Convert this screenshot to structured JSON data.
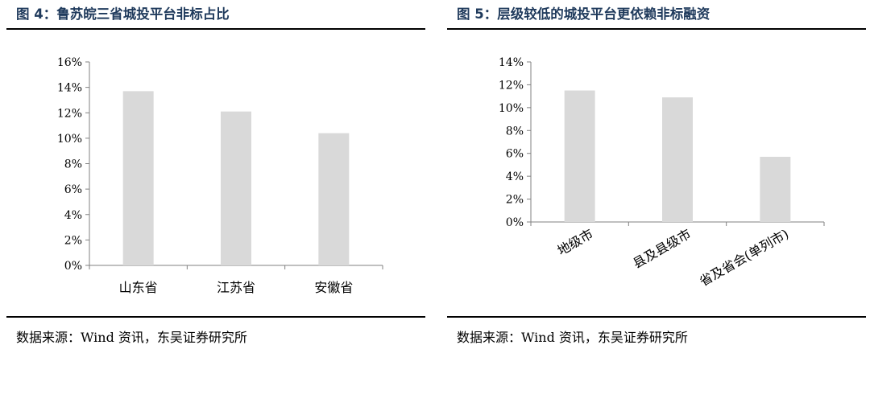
{
  "charts": [
    {
      "figure_title": "图 4：鲁苏皖三省城投平台非标占比",
      "source": "数据来源：Wind 资讯，东吴证券研究所"
    },
    {
      "figure_title": "图 5：层级较低的城投平台更依赖非标融资",
      "source": "数据来源：Wind 资讯，东吴证券研究所"
    }
  ],
  "chart_data": [
    {
      "type": "bar",
      "title": "图 4：鲁苏皖三省城投平台非标占比",
      "categories": [
        "山东省",
        "江苏省",
        "安徽省"
      ],
      "values": [
        13.7,
        12.1,
        10.4
      ],
      "unit": "%",
      "ylim": [
        0,
        16
      ],
      "yticks": [
        0,
        2,
        4,
        6,
        8,
        10,
        12,
        14,
        16
      ],
      "ytick_labels": [
        "0%",
        "2%",
        "4%",
        "6%",
        "8%",
        "10%",
        "12%",
        "14%",
        "16%"
      ],
      "bar_color": "#d9d9d9",
      "grid": false,
      "legend": "none"
    },
    {
      "type": "bar",
      "title": "图 5：层级较低的城投平台更依赖非标融资",
      "categories": [
        "地级市",
        "县及县级市",
        "省及省会(单列市)"
      ],
      "values": [
        11.5,
        10.9,
        5.7
      ],
      "unit": "%",
      "ylim": [
        0,
        14
      ],
      "yticks": [
        0,
        2,
        4,
        6,
        8,
        10,
        12,
        14
      ],
      "ytick_labels": [
        "0%",
        "2%",
        "4%",
        "6%",
        "8%",
        "10%",
        "12%",
        "14%"
      ],
      "bar_color": "#d9d9d9",
      "grid": false,
      "legend": "none",
      "category_label_rotation": -30
    }
  ]
}
